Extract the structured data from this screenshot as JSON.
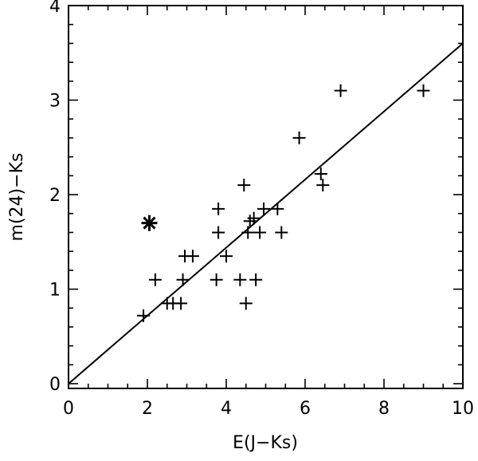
{
  "chart_data": {
    "type": "scatter",
    "xlabel": "E(J−Ks)",
    "ylabel": "m(24)−Ks",
    "xlim": [
      0,
      10
    ],
    "ylim": [
      -0.05,
      4.0
    ],
    "x_ticks": [
      0,
      2,
      4,
      6,
      8,
      10
    ],
    "y_ticks": [
      0,
      1,
      2,
      3,
      4
    ],
    "x_tick_labels": [
      "0",
      "2",
      "4",
      "6",
      "8",
      "10"
    ],
    "y_tick_labels": [
      "0",
      "1",
      "2",
      "3",
      "4"
    ],
    "x_minor_step": 0.5,
    "y_minor_step": 0.2,
    "grid": false,
    "series": [
      {
        "marker": "plus",
        "points": [
          [
            1.9,
            0.72
          ],
          [
            2.2,
            1.1
          ],
          [
            2.5,
            0.85
          ],
          [
            2.65,
            0.85
          ],
          [
            2.85,
            0.85
          ],
          [
            2.9,
            1.1
          ],
          [
            2.95,
            1.35
          ],
          [
            3.15,
            1.35
          ],
          [
            3.75,
            1.1
          ],
          [
            3.8,
            1.85
          ],
          [
            3.8,
            1.6
          ],
          [
            4.0,
            1.35
          ],
          [
            4.35,
            1.1
          ],
          [
            4.45,
            2.1
          ],
          [
            4.5,
            0.85
          ],
          [
            4.55,
            1.6
          ],
          [
            4.6,
            1.72
          ],
          [
            4.7,
            1.75
          ],
          [
            4.75,
            1.1
          ],
          [
            4.85,
            1.6
          ],
          [
            4.95,
            1.85
          ],
          [
            5.3,
            1.85
          ],
          [
            5.4,
            1.6
          ],
          [
            5.85,
            2.6
          ],
          [
            6.4,
            2.22
          ],
          [
            6.45,
            2.1
          ],
          [
            6.9,
            3.1
          ],
          [
            9.0,
            3.1
          ]
        ]
      },
      {
        "marker": "asterisk",
        "points": [
          [
            2.05,
            1.7
          ]
        ]
      }
    ],
    "fit_line": {
      "x": [
        0,
        10
      ],
      "y": [
        0,
        3.6
      ]
    }
  }
}
